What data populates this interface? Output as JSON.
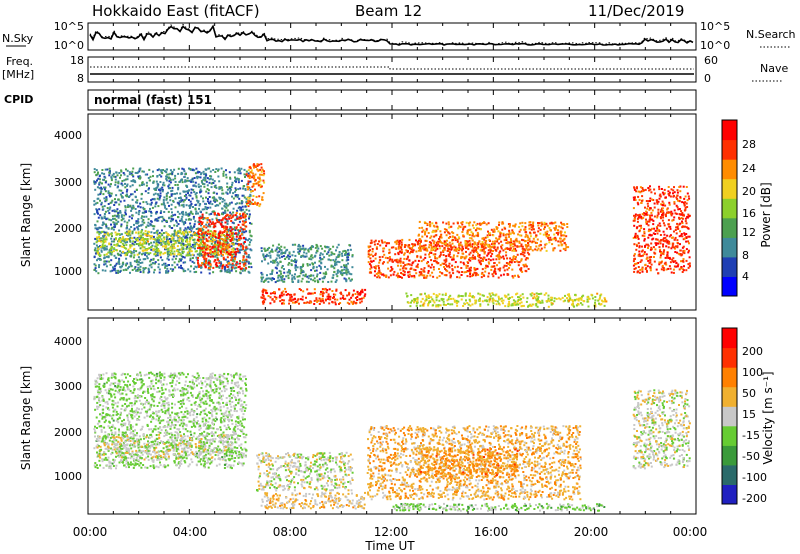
{
  "header": {
    "station": "Hokkaido East (fitACF)",
    "beam": "Beam 12",
    "date": "11/Dec/2019"
  },
  "noise_panel": {
    "left_label": "N.Sky",
    "left_ticks": [
      "10^5",
      "10^0"
    ],
    "right_label": "N.Search",
    "right_ticks": [
      "10^5",
      "10^0"
    ]
  },
  "freq_panel": {
    "left_label_line1": "Freq.",
    "left_label_line2": "[MHz]",
    "left_ticks": [
      "18",
      "8"
    ],
    "right_label": "Nave",
    "right_ticks": [
      "60",
      "0"
    ]
  },
  "cpid_panel": {
    "label": "CPID",
    "value": "normal (fast) 151"
  },
  "power_panel": {
    "ylabel": "Slant Range [km]",
    "yticks": [
      "4000",
      "3000",
      "2000",
      "1000"
    ],
    "colorbar_label": "Power [dB]",
    "colorbar_ticks": [
      "28",
      "24",
      "20",
      "16",
      "12",
      "8",
      "4"
    ],
    "colors": [
      "#0000ff",
      "#1f3fb4",
      "#3f8a9a",
      "#4ca050",
      "#8cd02c",
      "#f0d020",
      "#ff8c00",
      "#ff3000",
      "#ff0000"
    ]
  },
  "velocity_panel": {
    "ylabel": "Slant Range [km]",
    "yticks": [
      "4000",
      "3000",
      "2000",
      "1000"
    ],
    "colorbar_label": "Velocity [m s⁻¹]",
    "colorbar_ticks": [
      "200",
      "100",
      "50",
      "15",
      "-15",
      "-50",
      "-100",
      "-200"
    ],
    "colors": [
      "#2020c0",
      "#2a6a6a",
      "#3a9a3a",
      "#66cc33",
      "#c8c8c8",
      "#f0b030",
      "#ff8000",
      "#ff3000",
      "#ff0000"
    ]
  },
  "xaxis": {
    "label": "Time UT",
    "ticks": [
      "00:00",
      "04:00",
      "08:00",
      "12:00",
      "16:00",
      "20:00",
      "00:00"
    ]
  },
  "chart_data": [
    {
      "type": "heatmap",
      "title": "Power [dB]",
      "xlabel": "Time UT",
      "ylabel": "Slant Range [km]",
      "xlim_hours": [
        0,
        24
      ],
      "ylim": [
        200,
        4600
      ],
      "clim": [
        0,
        32
      ],
      "regions": [
        {
          "t0": 0.2,
          "t1": 6.5,
          "r0": 1000,
          "r1": 3400,
          "value": 9
        },
        {
          "t0": 0.3,
          "t1": 5.8,
          "r0": 1400,
          "r1": 2000,
          "value": 18
        },
        {
          "t0": 4.3,
          "t1": 6.3,
          "r0": 1100,
          "r1": 2400,
          "value": 27
        },
        {
          "t0": 6.2,
          "t1": 7.0,
          "r0": 2500,
          "r1": 3500,
          "value": 24
        },
        {
          "t0": 6.8,
          "t1": 10.5,
          "r0": 800,
          "r1": 1700,
          "value": 10
        },
        {
          "t0": 6.8,
          "t1": 11.0,
          "r0": 300,
          "r1": 700,
          "value": 27
        },
        {
          "t0": 11.0,
          "t1": 17.5,
          "r0": 900,
          "r1": 1800,
          "value": 26
        },
        {
          "t0": 13.0,
          "t1": 19.0,
          "r0": 1500,
          "r1": 2200,
          "value": 24
        },
        {
          "t0": 12.5,
          "t1": 20.5,
          "r0": 250,
          "r1": 600,
          "value": 18
        },
        {
          "t0": 21.5,
          "t1": 23.8,
          "r0": 1000,
          "r1": 3000,
          "value": 27
        }
      ]
    },
    {
      "type": "heatmap",
      "title": "Velocity [m s⁻¹]",
      "xlabel": "Time UT",
      "ylabel": "Slant Range [km]",
      "xlim_hours": [
        0,
        24
      ],
      "ylim": [
        200,
        4600
      ],
      "clim": [
        -250,
        250
      ],
      "regions": [
        {
          "t0": 0.2,
          "t1": 6.3,
          "r0": 1200,
          "r1": 3400,
          "value": -30
        },
        {
          "t0": 0.3,
          "t1": 5.8,
          "r0": 1400,
          "r1": 2000,
          "value": 0
        },
        {
          "t0": 6.6,
          "t1": 10.5,
          "r0": 700,
          "r1": 1600,
          "value": 0
        },
        {
          "t0": 6.8,
          "t1": 11.0,
          "r0": 300,
          "r1": 700,
          "value": 40
        },
        {
          "t0": 11.0,
          "t1": 19.5,
          "r0": 500,
          "r1": 2200,
          "value": 60
        },
        {
          "t0": 13.0,
          "t1": 17.0,
          "r0": 1000,
          "r1": 1700,
          "value": 90
        },
        {
          "t0": 12.0,
          "t1": 20.5,
          "r0": 250,
          "r1": 450,
          "value": -40
        },
        {
          "t0": 21.5,
          "t1": 23.8,
          "r0": 1200,
          "r1": 3000,
          "value": 0
        }
      ]
    }
  ]
}
